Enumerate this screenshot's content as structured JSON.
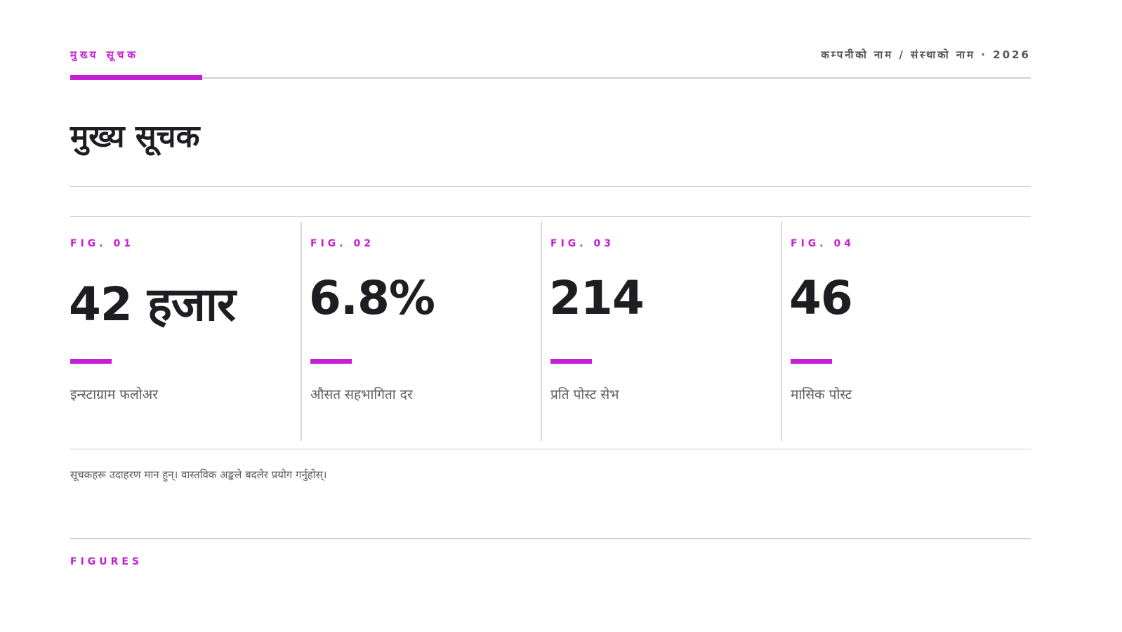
{
  "header": {
    "section": "मुख्य सूचक",
    "meta": "कम्पनीको नाम / संस्थाको नाम · 2026"
  },
  "title": "मुख्य सूचक",
  "figures": [
    {
      "label": "FIG. 01",
      "value": "42 हजार",
      "caption": "इन्स्टाग्राम फलोअर"
    },
    {
      "label": "FIG. 02",
      "value": "6.8%",
      "caption": "औसत सहभागिता दर"
    },
    {
      "label": "FIG. 03",
      "value": "214",
      "caption": "प्रति पोस्ट सेभ"
    },
    {
      "label": "FIG. 04",
      "value": "46",
      "caption": "मासिक पोस्ट"
    }
  ],
  "footnote": "सूचकहरू उदाहरण मान हुन्। वास्तविक अङ्कले बदलेर प्रयोग गर्नुहोस्।",
  "footer": "FIGURES"
}
